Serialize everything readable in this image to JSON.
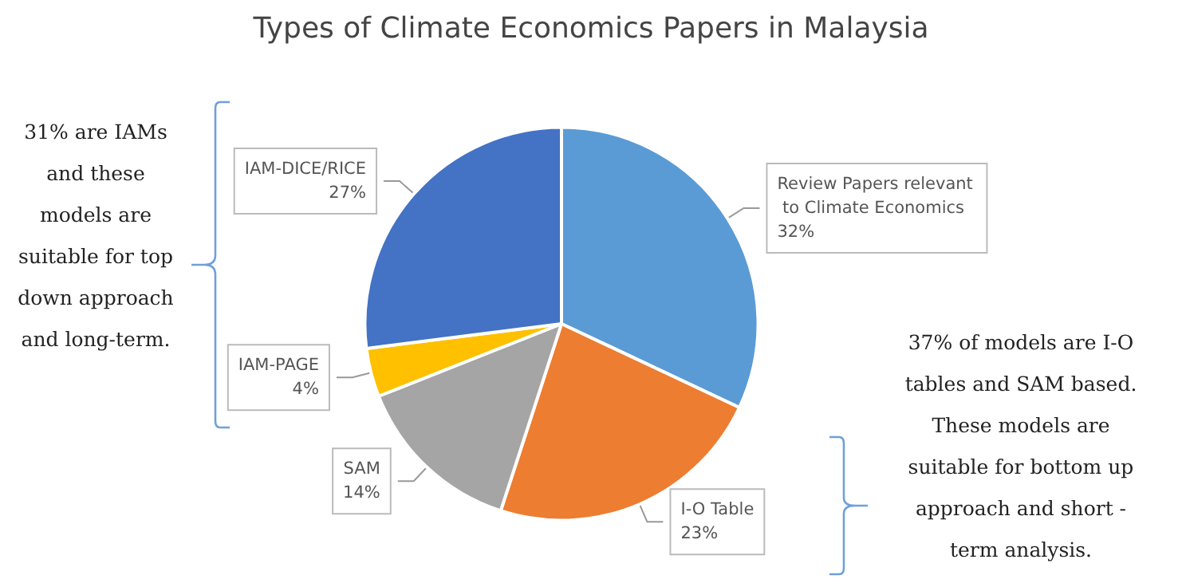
{
  "chart_data": {
    "type": "pie",
    "title": "Types of Climate Economics Papers in Malaysia",
    "categories": [
      "Review Papers relevant to Climate Economics",
      "I-O Table",
      "SAM",
      "IAM-PAGE",
      "IAM-DICE/RICE"
    ],
    "values": [
      32,
      23,
      14,
      4,
      27
    ],
    "colors": [
      "#5b9bd5",
      "#ed7d31",
      "#a5a5a5",
      "#ffc000",
      "#4472c4"
    ],
    "value_labels": [
      "32%",
      "23%",
      "14%",
      "4%",
      "27%"
    ],
    "legend": false,
    "annotations": [
      "31% are IAMs and these models are suitable for top down approach and long-term.",
      "37% of models are I-O tables and SAM based. These models are suitable for bottom up approach and short - term analysis."
    ]
  }
}
